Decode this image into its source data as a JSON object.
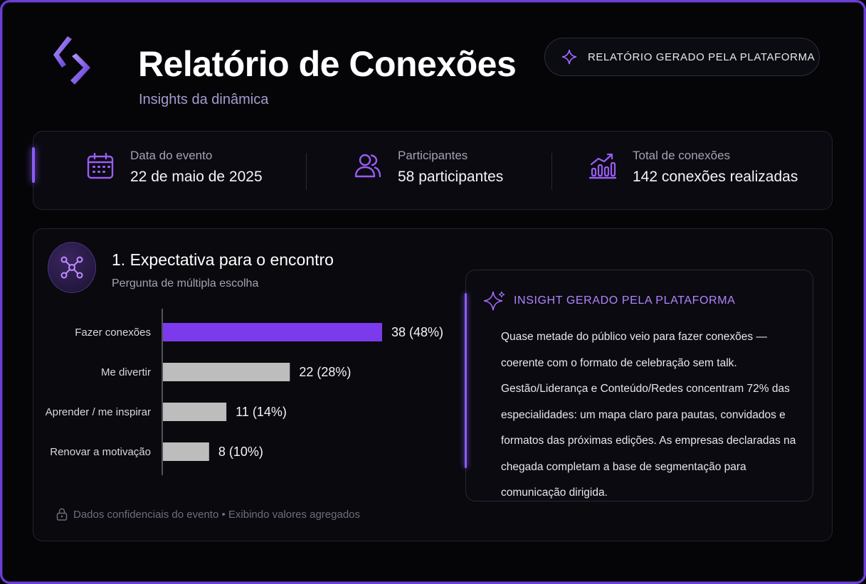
{
  "header": {
    "title": "Relatório de Conexões",
    "subtitle": "Insights da dinâmica",
    "badge": "RELATÓRIO GERADO PELA PLATAFORMA"
  },
  "stats": [
    {
      "icon": "calendar-icon",
      "label": "Data do evento",
      "value": "22 de maio de 2025"
    },
    {
      "icon": "users-icon",
      "label": "Participantes",
      "value": "58 participantes"
    },
    {
      "icon": "chart-growth-icon",
      "label": "Total de conexões",
      "value": "142 conexões realizadas"
    }
  ],
  "question": {
    "title": "1. Expectativa para o encontro",
    "subtitle": "Pergunta de múltipla escolha"
  },
  "chart_data": {
    "type": "bar",
    "orientation": "horizontal",
    "categories": [
      "Fazer conexões",
      "Me divertir",
      "Aprender / me inspirar",
      "Renovar a motivação"
    ],
    "values": [
      38,
      22,
      11,
      8
    ],
    "value_labels": [
      "38 (48%)",
      "22 (28%)",
      "11 (14%)",
      "8 (10%)"
    ],
    "percentages": [
      48,
      28,
      14,
      10
    ],
    "colors": [
      "#7c3aed",
      "#bdbdbd",
      "#bdbdbd",
      "#bdbdbd"
    ],
    "title": "",
    "xlabel": "",
    "ylabel": "",
    "grid": false
  },
  "footnote": "Dados confidenciais do evento • Exibindo valores agregados",
  "insight": {
    "label": "INSIGHT GERADO PELA PLATAFORMA",
    "text": "Quase metade do público veio para fazer conexões — coerente com o formato de celebração sem talk. Gestão/Liderança e Conteúdo/Redes concentram 72% das especialidades: um mapa claro para pautas, convidados e formatos das próximas edições. As empresas declaradas na chegada completam a base de segmentação para comunicação dirigida."
  },
  "colors": {
    "accent": "#8b5cf6",
    "accent_light": "#b184ff",
    "bar_primary": "#7c3aed",
    "bar_secondary": "#bdbdbd",
    "background": "#050508"
  }
}
